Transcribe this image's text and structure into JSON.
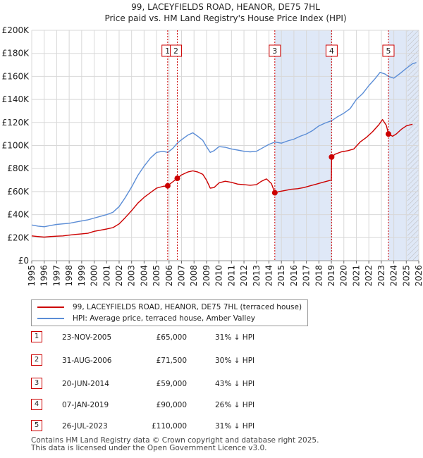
{
  "colors": {
    "property": "#cc0000",
    "hpi": "#5b8dd6",
    "shade": "#dfe8f7",
    "grid": "#d8d8d8",
    "marker_border": "#cc0000"
  },
  "chart_data": {
    "type": "line",
    "title": "99, LACEYFIELDS ROAD, HEANOR, DE75 7HL",
    "subtitle": "Price paid vs. HM Land Registry's House Price Index (HPI)",
    "xlim": [
      1995,
      2026
    ],
    "ylim": [
      0,
      200000
    ],
    "yticks": [
      0,
      20000,
      40000,
      60000,
      80000,
      100000,
      120000,
      140000,
      160000,
      180000,
      200000
    ],
    "ytick_labels": [
      "£0",
      "£20K",
      "£40K",
      "£60K",
      "£80K",
      "£100K",
      "£120K",
      "£140K",
      "£160K",
      "£180K",
      "£200K"
    ],
    "xticks": [
      "1995",
      "1996",
      "1997",
      "1998",
      "1999",
      "2000",
      "2001",
      "2002",
      "2003",
      "2004",
      "2005",
      "2006",
      "2007",
      "2008",
      "2009",
      "2010",
      "2011",
      "2012",
      "2013",
      "2014",
      "2015",
      "2016",
      "2017",
      "2018",
      "2019",
      "2020",
      "2021",
      "2022",
      "2023",
      "2024",
      "2025",
      "2026"
    ],
    "shaded_ranges": [
      [
        2014.47,
        2019.02
      ],
      [
        2023.57,
        2026
      ]
    ],
    "hatched_from": 2025.1,
    "series": [
      {
        "name": "99, LACEYFIELDS ROAD, HEANOR, DE75 7HL (terraced house)",
        "points": [
          [
            1995.0,
            21500
          ],
          [
            1995.5,
            21000
          ],
          [
            1996.0,
            20500
          ],
          [
            1996.5,
            21000
          ],
          [
            1997.0,
            21300
          ],
          [
            1997.5,
            21500
          ],
          [
            1998.0,
            22200
          ],
          [
            1998.5,
            22800
          ],
          [
            1999.0,
            23300
          ],
          [
            1999.5,
            23800
          ],
          [
            2000.0,
            25500
          ],
          [
            2000.5,
            26500
          ],
          [
            2001.0,
            27500
          ],
          [
            2001.5,
            28700
          ],
          [
            2002.0,
            32000
          ],
          [
            2002.5,
            37500
          ],
          [
            2003.0,
            43500
          ],
          [
            2003.5,
            50000
          ],
          [
            2004.0,
            55000
          ],
          [
            2004.5,
            59000
          ],
          [
            2005.0,
            63000
          ],
          [
            2005.5,
            64500
          ],
          [
            2005.89,
            65000
          ],
          [
            2006.0,
            66000
          ],
          [
            2006.3,
            68500
          ],
          [
            2006.66,
            71500
          ],
          [
            2007.0,
            74500
          ],
          [
            2007.5,
            77000
          ],
          [
            2007.9,
            78000
          ],
          [
            2008.3,
            77000
          ],
          [
            2008.7,
            75000
          ],
          [
            2009.0,
            70000
          ],
          [
            2009.3,
            63000
          ],
          [
            2009.6,
            63500
          ],
          [
            2010.0,
            67500
          ],
          [
            2010.5,
            69000
          ],
          [
            2011.0,
            68000
          ],
          [
            2011.5,
            66500
          ],
          [
            2012.0,
            66000
          ],
          [
            2012.5,
            65500
          ],
          [
            2013.0,
            66000
          ],
          [
            2013.4,
            69000
          ],
          [
            2013.8,
            71000
          ],
          [
            2014.2,
            67000
          ],
          [
            2014.47,
            59000
          ],
          [
            2014.8,
            60000
          ],
          [
            2015.3,
            61000
          ],
          [
            2015.8,
            62000
          ],
          [
            2016.3,
            62500
          ],
          [
            2016.8,
            63500
          ],
          [
            2017.3,
            65000
          ],
          [
            2017.8,
            66500
          ],
          [
            2018.3,
            68000
          ],
          [
            2018.8,
            69500
          ],
          [
            2019.0,
            70000
          ],
          [
            2019.02,
            90000
          ],
          [
            2019.3,
            92500
          ],
          [
            2019.8,
            94500
          ],
          [
            2020.3,
            95500
          ],
          [
            2020.8,
            97000
          ],
          [
            2021.3,
            103000
          ],
          [
            2021.8,
            107000
          ],
          [
            2022.3,
            112000
          ],
          [
            2022.8,
            118000
          ],
          [
            2023.1,
            122500
          ],
          [
            2023.4,
            117500
          ],
          [
            2023.57,
            110000
          ],
          [
            2023.9,
            108000
          ],
          [
            2024.2,
            110000
          ],
          [
            2024.6,
            114000
          ],
          [
            2025.0,
            117000
          ],
          [
            2025.5,
            118500
          ]
        ]
      },
      {
        "name": "HPI: Average price, terraced house, Amber Valley",
        "points": [
          [
            1995.0,
            31000
          ],
          [
            1995.5,
            30000
          ],
          [
            1996.0,
            29500
          ],
          [
            1996.5,
            30500
          ],
          [
            1997.0,
            31500
          ],
          [
            1997.5,
            32000
          ],
          [
            1998.0,
            32500
          ],
          [
            1998.5,
            33500
          ],
          [
            1999.0,
            34500
          ],
          [
            1999.5,
            35500
          ],
          [
            2000.0,
            37000
          ],
          [
            2000.5,
            38500
          ],
          [
            2001.0,
            40000
          ],
          [
            2001.5,
            42000
          ],
          [
            2002.0,
            47000
          ],
          [
            2002.5,
            55000
          ],
          [
            2003.0,
            64000
          ],
          [
            2003.5,
            74000
          ],
          [
            2004.0,
            82000
          ],
          [
            2004.5,
            89000
          ],
          [
            2005.0,
            94000
          ],
          [
            2005.5,
            95000
          ],
          [
            2005.89,
            94000
          ],
          [
            2006.3,
            97500
          ],
          [
            2006.66,
            102000
          ],
          [
            2007.0,
            105000
          ],
          [
            2007.5,
            109000
          ],
          [
            2007.9,
            111000
          ],
          [
            2008.3,
            108000
          ],
          [
            2008.7,
            104500
          ],
          [
            2009.0,
            99000
          ],
          [
            2009.3,
            94000
          ],
          [
            2009.6,
            95500
          ],
          [
            2010.0,
            99000
          ],
          [
            2010.5,
            98500
          ],
          [
            2011.0,
            97000
          ],
          [
            2011.5,
            96000
          ],
          [
            2012.0,
            95000
          ],
          [
            2012.5,
            94500
          ],
          [
            2013.0,
            95000
          ],
          [
            2013.5,
            98000
          ],
          [
            2014.0,
            101000
          ],
          [
            2014.47,
            103000
          ],
          [
            2015.0,
            102000
          ],
          [
            2015.5,
            104000
          ],
          [
            2016.0,
            105500
          ],
          [
            2016.5,
            108000
          ],
          [
            2017.0,
            110000
          ],
          [
            2017.5,
            113000
          ],
          [
            2018.0,
            117000
          ],
          [
            2018.5,
            119500
          ],
          [
            2019.02,
            121500
          ],
          [
            2019.5,
            125000
          ],
          [
            2020.0,
            128000
          ],
          [
            2020.5,
            132000
          ],
          [
            2021.0,
            140000
          ],
          [
            2021.5,
            145000
          ],
          [
            2022.0,
            152000
          ],
          [
            2022.5,
            158000
          ],
          [
            2022.9,
            163500
          ],
          [
            2023.3,
            162000
          ],
          [
            2023.57,
            160000
          ],
          [
            2024.0,
            158500
          ],
          [
            2024.5,
            162500
          ],
          [
            2025.0,
            167000
          ],
          [
            2025.5,
            171000
          ],
          [
            2025.8,
            172000
          ]
        ]
      }
    ],
    "sales": [
      {
        "num": "1",
        "x": 2005.89,
        "y": 65000,
        "label_x": 2005.88,
        "date": "23-NOV-2005",
        "price": "£65,000",
        "delta": "31% ↓ HPI"
      },
      {
        "num": "2",
        "x": 2006.66,
        "y": 71500,
        "label_x": 2006.55,
        "date": "31-AUG-2006",
        "price": "£71,500",
        "delta": "30% ↓ HPI"
      },
      {
        "num": "3",
        "x": 2014.47,
        "y": 59000,
        "label_x": 2014.47,
        "date": "20-JUN-2014",
        "price": "£59,000",
        "delta": "43% ↓ HPI"
      },
      {
        "num": "4",
        "x": 2019.02,
        "y": 90000,
        "label_x": 2019.02,
        "date": "07-JAN-2019",
        "price": "£90,000",
        "delta": "26% ↓ HPI"
      },
      {
        "num": "5",
        "x": 2023.57,
        "y": 110000,
        "label_x": 2023.57,
        "date": "26-JUL-2023",
        "price": "£110,000",
        "delta": "31% ↓ HPI"
      }
    ]
  },
  "legend": {
    "property": "99, LACEYFIELDS ROAD, HEANOR, DE75 7HL (terraced house)",
    "hpi": "HPI: Average price, terraced house, Amber Valley"
  },
  "footer": {
    "line1": "Contains HM Land Registry data © Crown copyright and database right 2025.",
    "line2": "This data is licensed under the Open Government Licence v3.0."
  }
}
